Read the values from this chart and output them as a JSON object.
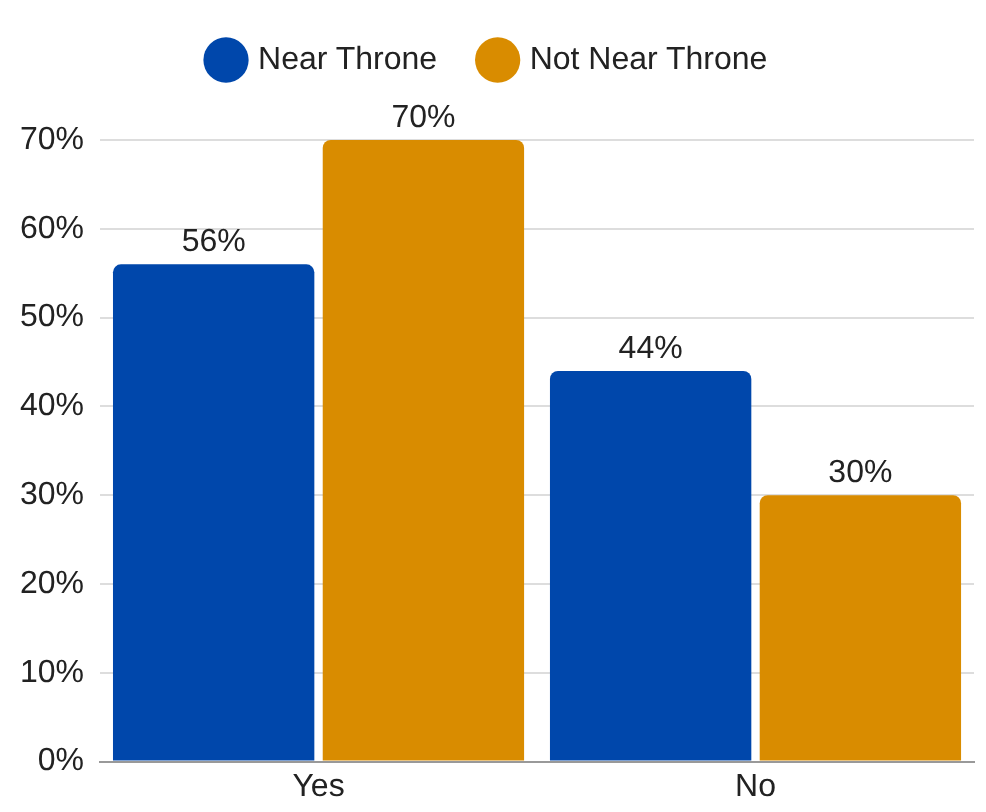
{
  "chart_data": {
    "type": "bar",
    "categories": [
      "Yes",
      "No"
    ],
    "series": [
      {
        "name": "Near Throne",
        "color": "#0047ab",
        "values": [
          56,
          44
        ],
        "value_labels": [
          "56%",
          "44%"
        ]
      },
      {
        "name": "Not Near Throne",
        "color": "#d98c00",
        "values": [
          70,
          30
        ],
        "value_labels": [
          "70%",
          "30%"
        ]
      }
    ],
    "ylim": [
      0,
      70
    ],
    "yticks": [
      {
        "value": 0,
        "label": "0%"
      },
      {
        "value": 10,
        "label": "10%"
      },
      {
        "value": 20,
        "label": "20%"
      },
      {
        "value": 30,
        "label": "30%"
      },
      {
        "value": 40,
        "label": "40%"
      },
      {
        "value": 50,
        "label": "50%"
      },
      {
        "value": 60,
        "label": "60%"
      },
      {
        "value": 70,
        "label": "70%"
      }
    ],
    "grid": "y",
    "legend": "top"
  }
}
